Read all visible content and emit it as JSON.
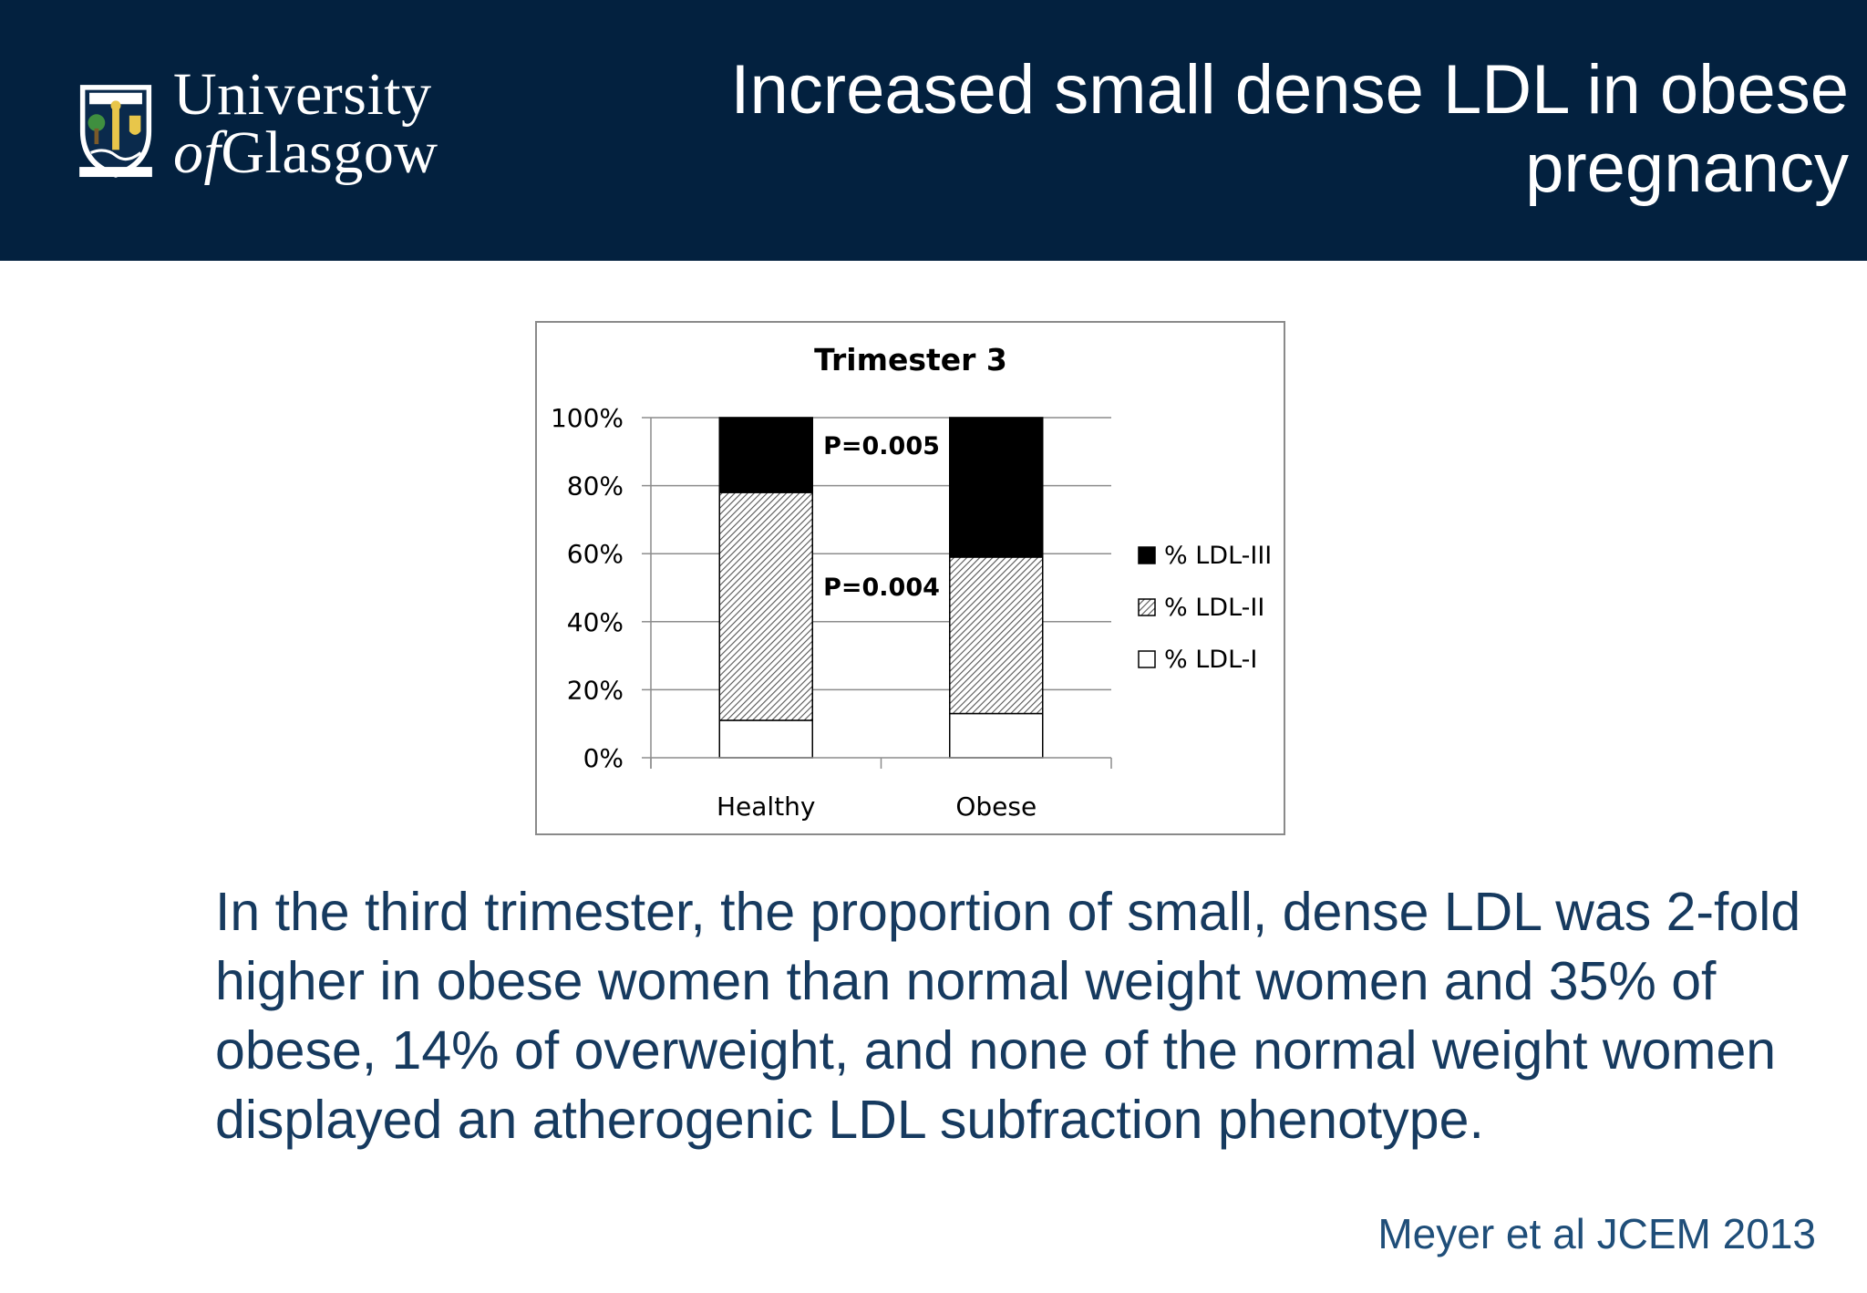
{
  "header": {
    "logo_line1": "University",
    "logo_line2_of": "of",
    "logo_line2_rest": "Glasgow",
    "title_line1": "Increased small dense LDL in obese",
    "title_line2": "pregnancy"
  },
  "colors": {
    "header_bg": "#03213f",
    "body_text": "#163a5f",
    "citation": "#1f4e79"
  },
  "chart_data": {
    "type": "bar",
    "stacked": true,
    "title": "Trimester 3",
    "categories": [
      "Healthy",
      "Obese"
    ],
    "series": [
      {
        "name": "% LDL-I",
        "values": [
          11,
          13
        ],
        "fill": "white"
      },
      {
        "name": "% LDL-II",
        "values": [
          67,
          46
        ],
        "fill": "hatched"
      },
      {
        "name": "% LDL-III",
        "values": [
          22,
          41
        ],
        "fill": "black"
      }
    ],
    "ylim": [
      0,
      100
    ],
    "yticks": [
      "0%",
      "20%",
      "40%",
      "60%",
      "80%",
      "100%"
    ],
    "grid": true,
    "legend": "right",
    "annotations": [
      "P=0.005",
      "P=0.004"
    ]
  },
  "body": {
    "paragraph": "In the third trimester, the proportion of small, dense LDL was 2-fold higher in obese women than normal weight women and 35% of obese, 14% of overweight, and none of the normal weight women displayed an atherogenic LDL subfraction phenotype."
  },
  "citation": "Meyer et al JCEM 2013"
}
